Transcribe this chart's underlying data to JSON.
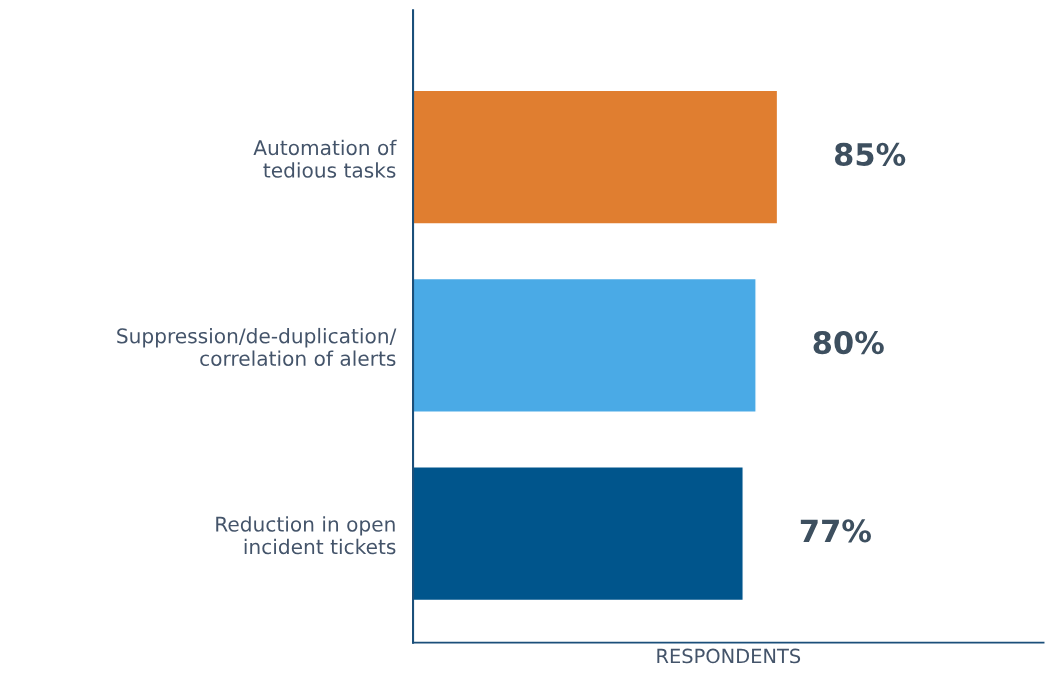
{
  "chart_data": {
    "type": "bar",
    "orientation": "horizontal",
    "categories": [
      "Automation of\ntedious tasks",
      "Suppression/de-duplication/\ncorrelation of alerts",
      "Reduction in open\nincident tickets"
    ],
    "values": [
      85,
      80,
      77
    ],
    "colors": [
      "#e07e30",
      "#4aaae6",
      "#00558c"
    ],
    "xlabel": "RESPONDENTS",
    "data_labels": true,
    "value_labels": [
      "85%",
      "80%",
      "77%"
    ],
    "grid": false,
    "legend": false
  }
}
